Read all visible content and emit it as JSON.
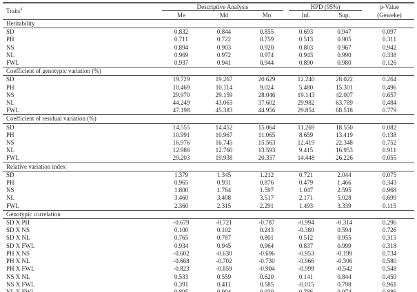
{
  "table": {
    "header": {
      "traits_label": "Traits",
      "traits_footnote_mark": "1",
      "group_descriptive": "Descriptive Analysis",
      "group_hpd": "HPD (95%)",
      "pvalue_line1": "p-Value",
      "pvalue_line2": "(Geweke)",
      "subheaders": [
        "Me",
        "Md",
        "Mo",
        "Inf.",
        "Sup."
      ]
    },
    "sections": [
      {
        "title": "Heritability",
        "rows": [
          {
            "trait": "SD",
            "values": [
              "0.832",
              "0.844",
              "0.855",
              "0.693",
              "0.947",
              "0.097"
            ]
          },
          {
            "trait": "PH",
            "values": [
              "0.711",
              "0.722",
              "0.759",
              "0.513",
              "0.905",
              "0.311"
            ]
          },
          {
            "trait": "NS",
            "values": [
              "0.894",
              "0.903",
              "0.920",
              "0.803",
              "0.967",
              "0.942"
            ]
          },
          {
            "trait": "NL",
            "values": [
              "0.969",
              "0.972",
              "0.974",
              "0.943",
              "0.990",
              "0.338"
            ]
          },
          {
            "trait": "FWL",
            "values": [
              "0.937",
              "0.941",
              "0.944",
              "0.890",
              "0.980",
              "0.126"
            ]
          }
        ]
      },
      {
        "title": "Coefficient of genotypic variation (%)",
        "rows": [
          {
            "trait": "SD",
            "values": [
              "19.729",
              "19.267",
              "20.629",
              "12.240",
              "28.022",
              "0.264"
            ]
          },
          {
            "trait": "PH",
            "values": [
              "10.469",
              "10.114",
              "9.024",
              "5.480",
              "15.301",
              "0.496"
            ]
          },
          {
            "trait": "NS",
            "values": [
              "29.970",
              "29.159",
              "28.046",
              "19.143",
              "42.007",
              "0.657"
            ]
          },
          {
            "trait": "NL",
            "values": [
              "44.249",
              "43.063",
              "37.602",
              "29.982",
              "63.789",
              "0.484"
            ]
          },
          {
            "trait": "FWL",
            "values": [
              "47.198",
              "45.383",
              "44.956",
              "29.854",
              "68.518",
              "0.779"
            ]
          }
        ]
      },
      {
        "title": "Coefficient of residual variation (%)",
        "rows": [
          {
            "trait": "SD",
            "values": [
              "14.555",
              "14.452",
              "15.064",
              "11.269",
              "18.550",
              "0.082"
            ]
          },
          {
            "trait": "PH",
            "values": [
              "10.991",
              "10.967",
              "11.065",
              "8.659",
              "13.419",
              "0.138"
            ]
          },
          {
            "trait": "NS",
            "values": [
              "16.976",
              "16.745",
              "15.563",
              "12.419",
              "22.348",
              "0.752"
            ]
          },
          {
            "trait": "NL",
            "values": [
              "12.986",
              "12.760",
              "13.593",
              "9.415",
              "16.953",
              "0.911"
            ]
          },
          {
            "trait": "FWL",
            "values": [
              "20.203",
              "19.938",
              "20.357",
              "14.448",
              "26.226",
              "0.055"
            ]
          }
        ]
      },
      {
        "title": "Relative variation index",
        "rows": [
          {
            "trait": "SD",
            "values": [
              "1.379",
              "1.345",
              "1.212",
              "0.721",
              "2.044",
              "0.075"
            ]
          },
          {
            "trait": "PH",
            "values": [
              "0.965",
              "0.931",
              "0.876",
              "0.479",
              "1.466",
              "0.343"
            ]
          },
          {
            "trait": "NS",
            "values": [
              "1.800",
              "1.764",
              "1.597",
              "1.047",
              "2.595",
              "0.968"
            ]
          },
          {
            "trait": "NL",
            "values": [
              "3.460",
              "3.408",
              "3.517",
              "2.171",
              "5.028",
              "0.699"
            ]
          },
          {
            "trait": "FWL",
            "values": [
              "2.360",
              "2.315",
              "2.291",
              "1.493",
              "3.339",
              "0.115"
            ]
          }
        ]
      },
      {
        "title": "Genotypic correlation",
        "rows": [
          {
            "trait": "SD X PH",
            "values": [
              "-0.679",
              "-0.721",
              "-0.787",
              "-0.994",
              "-0.314",
              "0.296"
            ]
          },
          {
            "trait": "SD X NS",
            "values": [
              "0.100",
              "0.102",
              "0.243",
              "-0.380",
              "0.594",
              "0.726"
            ]
          },
          {
            "trait": "SD X NL",
            "values": [
              "0.765",
              "0.787",
              "0.801",
              "0.512",
              "0.955",
              "0.315"
            ]
          },
          {
            "trait": "SD X FWL",
            "values": [
              "0.934",
              "0.945",
              "0.964",
              "0.837",
              "0.999",
              "0.318"
            ]
          },
          {
            "trait": "PH X NS",
            "values": [
              "-0.602",
              "-0.630",
              "-0.696",
              "-0.953",
              "-0.199",
              "0.734"
            ]
          },
          {
            "trait": "PH X NL",
            "values": [
              "-0.668",
              "-0.702",
              "-0.730",
              "-0.966",
              "-0.306",
              "0.580"
            ]
          },
          {
            "trait": "PH X FWL",
            "values": [
              "-0.823",
              "-0.859",
              "-0.904",
              "-0.999",
              "-0.542",
              "0.548"
            ]
          },
          {
            "trait": "NS X NL",
            "values": [
              "0.533",
              "0.559",
              "0.620",
              "0.141",
              "0.844",
              "0.450"
            ]
          },
          {
            "trait": "NS X FWL",
            "values": [
              "0.391",
              "0.411",
              "0.585",
              "-0.015",
              "0.798",
              "0.961"
            ]
          },
          {
            "trait": "NL X FWL",
            "values": [
              "0.895",
              "0.904",
              "0.930",
              "0.786",
              "0.974",
              "0.886"
            ]
          }
        ]
      }
    ]
  }
}
